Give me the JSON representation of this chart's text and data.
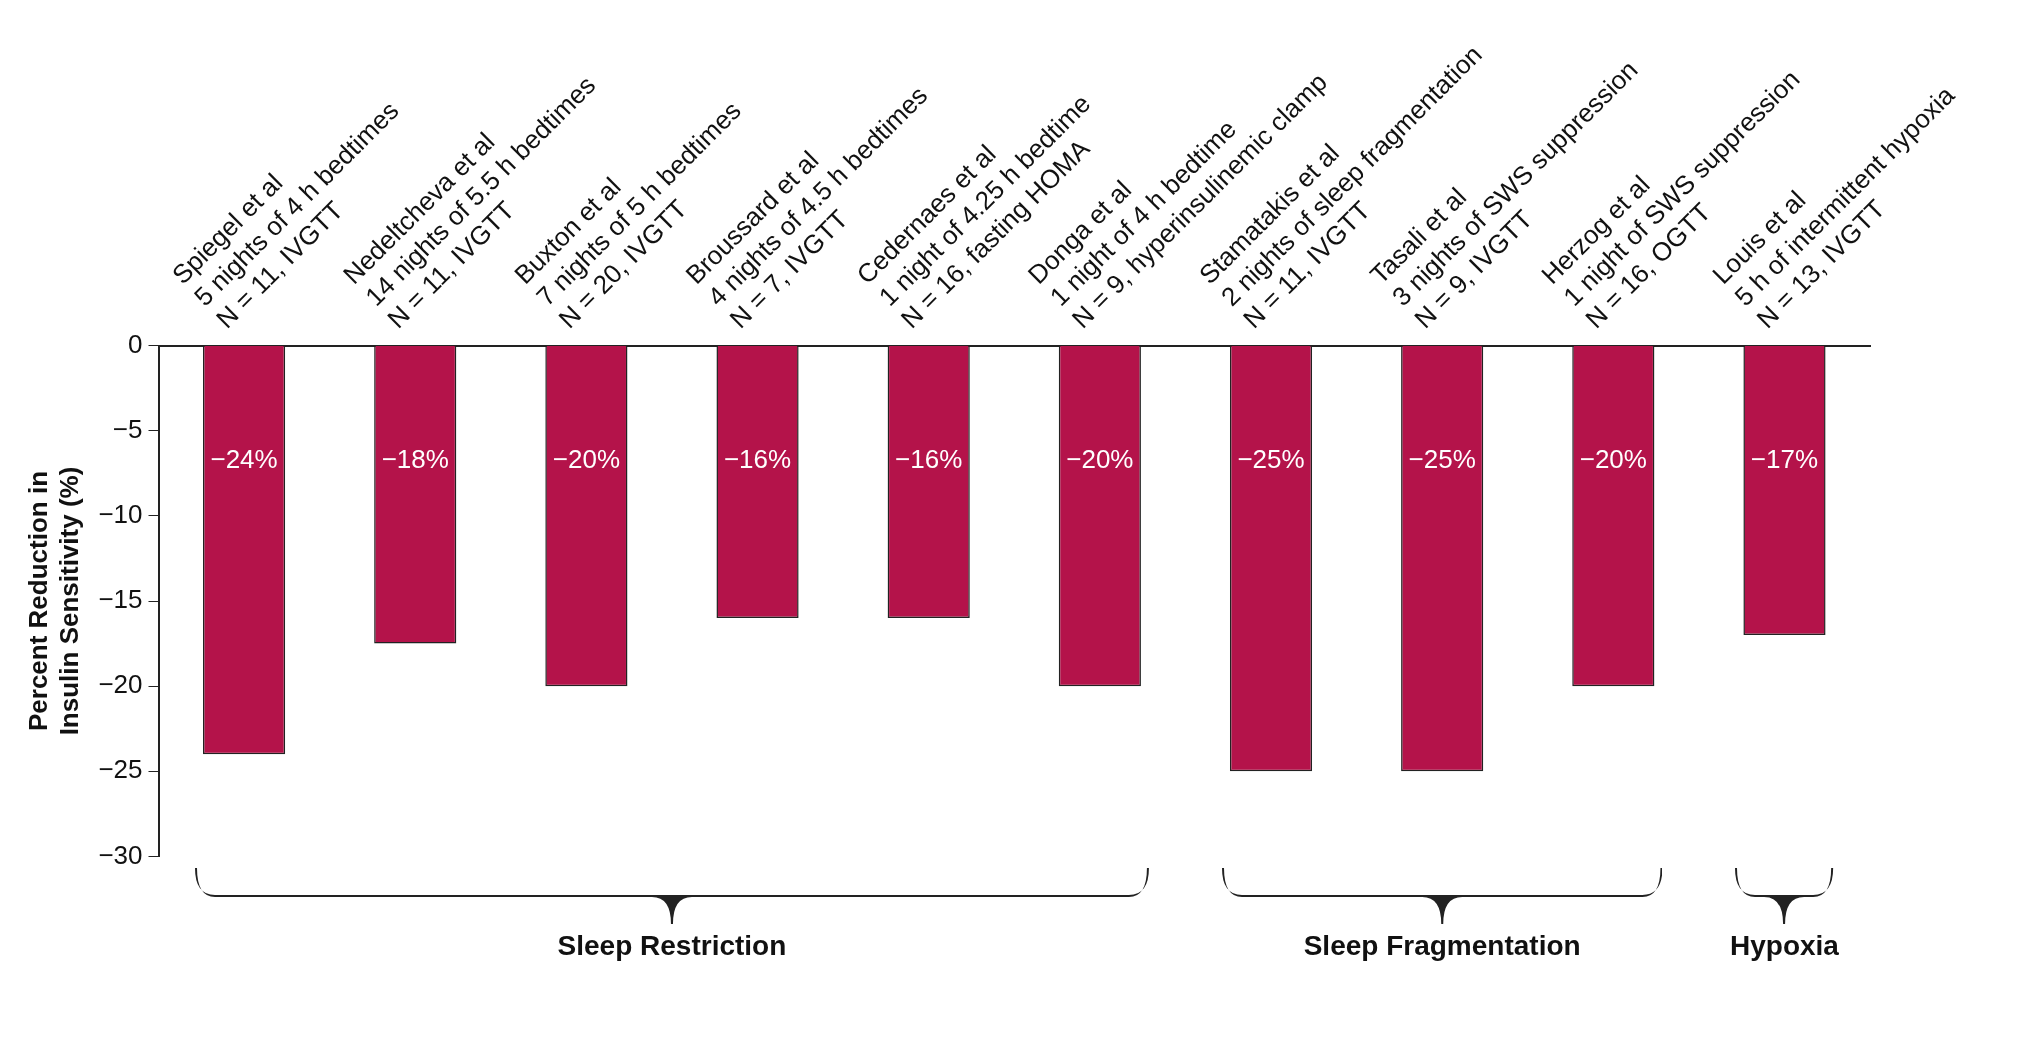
{
  "chart_data": {
    "type": "bar",
    "ylabel": "Percent Reduction in\nInsulin Sensitivity (%)",
    "categories": [
      "Spiegel et al\n5 nights of 4 h bedtimes\nN = 11, IVGTT",
      "Nedeltcheva et al\n14 nights of 5.5 h bedtimes\nN = 11, IVGTT",
      "Buxton et al\n7 nights of 5 h bedtimes\nN = 20, IVGTT",
      "Broussard et al\n4 nights of 4.5 h bedtimes\nN = 7, IVGTT",
      "Cedernaes et al\n1 night of 4.25 h bedtime\nN = 16, fasting HOMA",
      "Donga et al\n1 night of 4 h bedtime\nN = 9, hyperinsulinemic clamp",
      "Stamatakis et al\n2 nights of sleep fragmentation\nN = 11, IVGTT",
      "Tasali et al\n3 nights of SWS suppression\nN = 9, IVGTT",
      "Herzog et al\n1 night of SWS suppression\nN = 16, OGTT",
      "Louis et al\n5 h of intermittent hypoxia\nN = 13, IVGTT"
    ],
    "values": [
      -24,
      -17.5,
      -20,
      -16,
      -16,
      -20,
      -25,
      -25,
      -20,
      -17
    ],
    "value_labels": [
      "−24%",
      "−18%",
      "−20%",
      "−16%",
      "−16%",
      "−20%",
      "−25%",
      "−25%",
      "−20%",
      "−17%"
    ],
    "color": "#b4134a",
    "ylim": [
      -30,
      0
    ],
    "yticks": [
      0,
      -5,
      -10,
      -15,
      -20,
      -25,
      -30
    ],
    "grid": false,
    "legend": false,
    "annotations": [
      "Sleep Restriction",
      "Sleep Fragmentation",
      "Hypoxia"
    ]
  }
}
